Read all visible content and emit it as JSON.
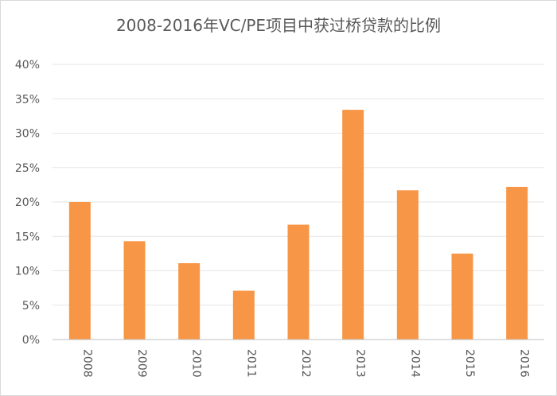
{
  "chart_data": {
    "type": "bar",
    "title": "2008-2016年VC/PE项目中获过桥贷款的比例",
    "categories": [
      "2008",
      "2009",
      "2010",
      "2011",
      "2012",
      "2013",
      "2014",
      "2015",
      "2016"
    ],
    "values": [
      20.0,
      14.3,
      11.1,
      7.1,
      16.7,
      33.4,
      21.7,
      12.5,
      22.2
    ],
    "value_unit": "%",
    "ylim": [
      0,
      40
    ],
    "yticks": [
      "0%",
      "5%",
      "10%",
      "15%",
      "20%",
      "25%",
      "30%",
      "35%",
      "40%"
    ],
    "ytick_values": [
      0,
      5,
      10,
      15,
      20,
      25,
      30,
      35,
      40
    ],
    "xlabel": "",
    "ylabel": "",
    "grid": true,
    "legend": "none",
    "bar_color": "#f79646",
    "grid_color": "#e6e6e6"
  }
}
